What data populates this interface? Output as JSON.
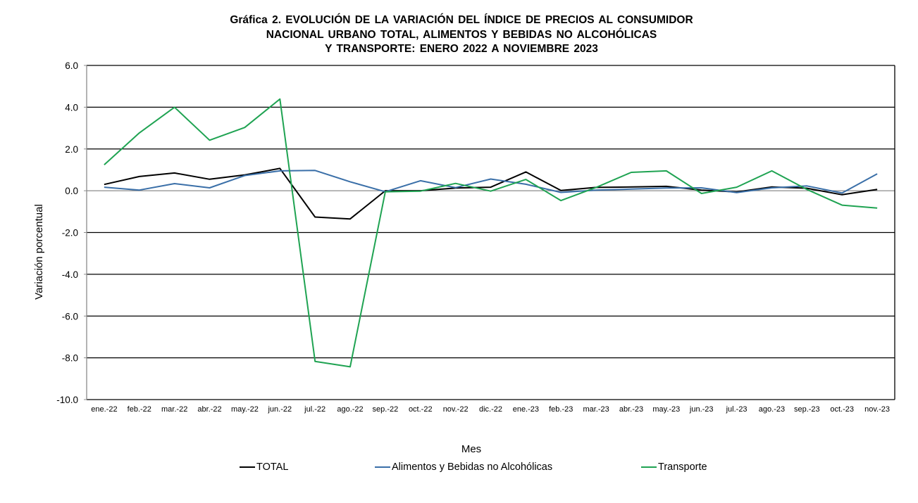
{
  "chart_data": {
    "type": "line",
    "title_lines": [
      "Gráfica 2. EVOLUCIÓN DE LA VARIACIÓN DEL ÍNDICE DE PRECIOS AL CONSUMIDOR",
      "NACIONAL URBANO TOTAL, ALIMENTOS Y BEBIDAS NO ALCOHÓLICAS",
      "Y TRANSPORTE: ENERO 2022 A NOVIEMBRE 2023"
    ],
    "xlabel": "Mes",
    "ylabel": "Variación porcentual",
    "ylim": [
      -10,
      6
    ],
    "yticks": [
      6,
      4,
      2,
      0,
      -2,
      -4,
      -6,
      -8,
      -10
    ],
    "ytick_labels": [
      "6.0",
      "4.0",
      "2.0",
      "0.0",
      "-2.0",
      "-4.0",
      "-6.0",
      "-8.0",
      "-10.0"
    ],
    "grid": true,
    "legend_position": "bottom",
    "categories": [
      "ene.-22",
      "feb.-22",
      "mar.-22",
      "abr.-22",
      "may.-22",
      "jun.-22",
      "jul.-22",
      "ago.-22",
      "sep.-22",
      "oct.-22",
      "nov.-22",
      "dic.-22",
      "ene.-23",
      "feb.-23",
      "mar.-23",
      "abr.-23",
      "may.-23",
      "jun.-23",
      "jul.-23",
      "ago.-23",
      "sep.-23",
      "oct.-23",
      "nov.-23"
    ],
    "series": [
      {
        "name": "TOTAL",
        "color": "#000000",
        "values": [
          0.3,
          0.68,
          0.85,
          0.55,
          0.76,
          1.07,
          -1.26,
          -1.35,
          0.0,
          0.0,
          0.13,
          0.17,
          0.9,
          0.01,
          0.16,
          0.18,
          0.21,
          0.03,
          -0.06,
          0.18,
          0.12,
          -0.19,
          0.06
        ]
      },
      {
        "name": "Alimentos y Bebidas no Alcohólicas",
        "color": "#3a6fa8",
        "values": [
          0.17,
          0.03,
          0.34,
          0.14,
          0.73,
          0.95,
          0.97,
          0.43,
          -0.05,
          0.48,
          0.15,
          0.56,
          0.31,
          -0.08,
          0.03,
          0.08,
          0.13,
          0.14,
          -0.09,
          0.14,
          0.23,
          -0.11,
          0.81
        ]
      },
      {
        "name": "Transporte",
        "color": "#1fa352",
        "values": [
          1.24,
          2.77,
          4.0,
          2.42,
          3.03,
          4.39,
          -8.17,
          -8.43,
          -0.05,
          -0.02,
          0.35,
          -0.02,
          0.54,
          -0.47,
          0.16,
          0.88,
          0.95,
          -0.13,
          0.17,
          0.95,
          0.06,
          -0.69,
          -0.83
        ]
      }
    ]
  }
}
